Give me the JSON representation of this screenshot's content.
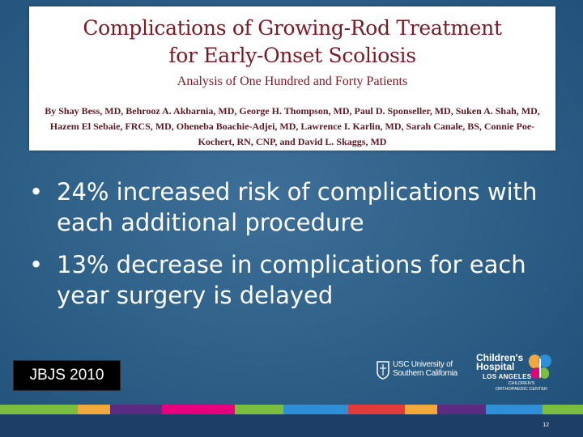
{
  "paper": {
    "title": "Complications of Growing-Rod Treatment for Early-Onset Scoliosis",
    "subtitle": "Analysis of One Hundred and Forty Patients",
    "authors": "By Shay Bess, MD, Behrooz A. Akbarnia, MD, George H. Thompson, MD, Paul D. Sponseller, MD, Suken A. Shah, MD, Hazem El Sebaie, FRCS, MD, Oheneba Boachie-Adjei, MD, Lawrence I. Karlin, MD, Sarah Canale, BS, Connie Poe-Kochert, RN, CNP, and David L. Skaggs, MD"
  },
  "bullets": [
    {
      "marker": "•",
      "text": "24% increased risk of complications with each additional procedure"
    },
    {
      "marker": "•",
      "text": "13% decrease in complications for each year surgery is delayed"
    }
  ],
  "citation": "JBJS 2010",
  "logos": {
    "usc": {
      "line1": "USC University of",
      "line2": "Southern California"
    },
    "chla": {
      "name_line1": "Children's",
      "name_line2": "Hospital",
      "name_line3": "LOS ANGELES",
      "sub_line1": "CHILDREN'S",
      "sub_line2": "ORTHOPAEDIC CENTER"
    }
  },
  "page_number": "12",
  "colors": {
    "background": "#2f6189",
    "title_text": "#7a1a24",
    "footer": "#1d3e66",
    "color_bar": [
      "#7bbd3f",
      "#f2a93b",
      "#5a2d82",
      "#e6007e",
      "#7bbd3f",
      "#2e8fd6",
      "#e23b3b",
      "#f2a93b",
      "#5a2d82",
      "#2e8fd6",
      "#7bbd3f"
    ]
  }
}
